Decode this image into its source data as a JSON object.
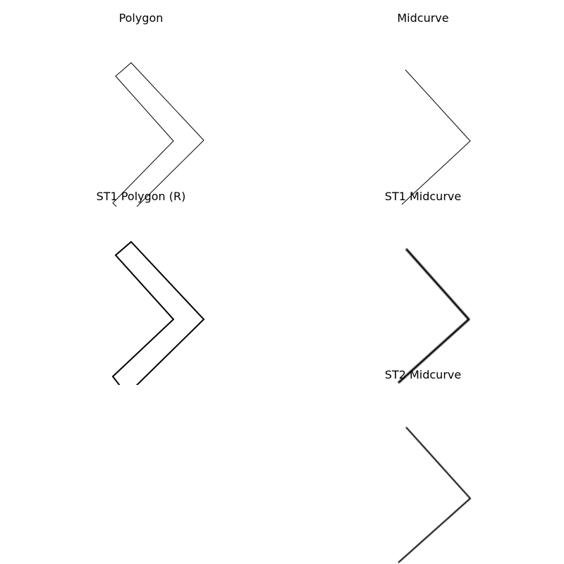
{
  "panels": [
    {
      "title": "Polygon"
    },
    {
      "title": "Midcurve"
    },
    {
      "title": "ST1 Polygon (R)"
    },
    {
      "title": "ST1 Midcurve"
    },
    {
      "title": ""
    },
    {
      "title": "ST2 Midcurve"
    }
  ]
}
